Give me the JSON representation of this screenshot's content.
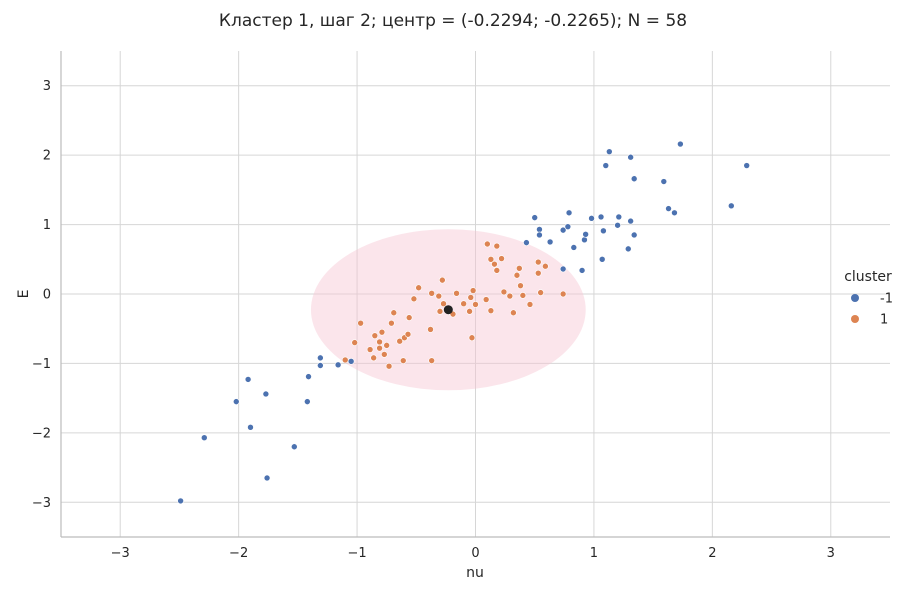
{
  "chart_data": {
    "type": "scatter",
    "title": "Кластер 1, шаг 2; центр = (-0.2294; -0.2265); N = 58",
    "xlabel": "nu",
    "ylabel": "E",
    "xlim": [
      -3.5,
      3.5
    ],
    "ylim": [
      -3.5,
      3.5
    ],
    "xticks": [
      -3,
      -2,
      -1,
      0,
      1,
      2,
      3
    ],
    "yticks": [
      -3,
      -2,
      -1,
      0,
      1,
      2,
      3
    ],
    "xtick_labels": [
      "−3",
      "−2",
      "−1",
      "0",
      "1",
      "2",
      "3"
    ],
    "ytick_labels": [
      "−3",
      "−2",
      "−1",
      "0",
      "1",
      "2",
      "3"
    ],
    "grid": true,
    "legend": {
      "title": "cluster",
      "placement": "right",
      "entries": [
        {
          "label": "-1",
          "color": "#4c72b0"
        },
        {
          "label": "1",
          "color": "#dd8452"
        }
      ]
    },
    "center": {
      "x": -0.2294,
      "y": -0.2265,
      "color": "#222222"
    },
    "circle": {
      "cx": -0.2294,
      "cy": -0.2265,
      "r": 1.16,
      "color": "#f7c5d2"
    },
    "series": [
      {
        "name": "-1",
        "color": "#4c72b0",
        "points": [
          [
            -2.49,
            -2.98
          ],
          [
            -2.29,
            -2.07
          ],
          [
            -2.02,
            -1.55
          ],
          [
            -1.92,
            -1.23
          ],
          [
            -1.9,
            -1.92
          ],
          [
            -1.77,
            -1.44
          ],
          [
            -1.76,
            -2.65
          ],
          [
            -1.53,
            -2.2
          ],
          [
            -1.42,
            -1.55
          ],
          [
            -1.41,
            -1.19
          ],
          [
            -1.31,
            -0.92
          ],
          [
            -1.31,
            -1.03
          ],
          [
            -1.16,
            -1.02
          ],
          [
            -1.05,
            -0.97
          ],
          [
            0.43,
            0.74
          ],
          [
            0.5,
            1.1
          ],
          [
            0.54,
            0.93
          ],
          [
            0.54,
            0.85
          ],
          [
            0.63,
            0.75
          ],
          [
            0.74,
            0.92
          ],
          [
            0.78,
            0.97
          ],
          [
            0.79,
            1.17
          ],
          [
            0.83,
            0.67
          ],
          [
            0.9,
            0.34
          ],
          [
            0.92,
            0.78
          ],
          [
            0.93,
            0.86
          ],
          [
            0.98,
            1.09
          ],
          [
            1.06,
            1.11
          ],
          [
            1.07,
            0.5
          ],
          [
            1.08,
            0.91
          ],
          [
            1.1,
            1.85
          ],
          [
            1.13,
            2.05
          ],
          [
            1.2,
            0.99
          ],
          [
            1.21,
            1.11
          ],
          [
            1.29,
            0.65
          ],
          [
            1.31,
            1.05
          ],
          [
            1.31,
            1.97
          ],
          [
            1.34,
            1.66
          ],
          [
            1.34,
            0.85
          ],
          [
            1.59,
            1.62
          ],
          [
            1.63,
            1.23
          ],
          [
            1.68,
            1.17
          ],
          [
            1.73,
            2.16
          ],
          [
            2.16,
            1.27
          ],
          [
            2.29,
            1.85
          ],
          [
            0.74,
            0.36
          ]
        ]
      },
      {
        "name": "1",
        "color": "#dd8452",
        "points": [
          [
            -1.1,
            -0.95
          ],
          [
            -1.02,
            -0.7
          ],
          [
            -0.97,
            -0.42
          ],
          [
            -0.89,
            -0.8
          ],
          [
            -0.86,
            -0.92
          ],
          [
            -0.85,
            -0.6
          ],
          [
            -0.81,
            -0.69
          ],
          [
            -0.81,
            -0.78
          ],
          [
            -0.79,
            -0.55
          ],
          [
            -0.77,
            -0.87
          ],
          [
            -0.75,
            -0.74
          ],
          [
            -0.73,
            -1.04
          ],
          [
            -0.71,
            -0.42
          ],
          [
            -0.69,
            -0.27
          ],
          [
            -0.64,
            -0.68
          ],
          [
            -0.61,
            -0.96
          ],
          [
            -0.6,
            -0.63
          ],
          [
            -0.57,
            -0.58
          ],
          [
            -0.56,
            -0.34
          ],
          [
            -0.52,
            -0.07
          ],
          [
            -0.48,
            0.09
          ],
          [
            -0.38,
            -0.51
          ],
          [
            -0.37,
            -0.96
          ],
          [
            -0.37,
            0.01
          ],
          [
            -0.31,
            -0.03
          ],
          [
            -0.3,
            -0.25
          ],
          [
            -0.28,
            0.2
          ],
          [
            -0.27,
            -0.14
          ],
          [
            -0.22,
            -0.25
          ],
          [
            -0.19,
            -0.29
          ],
          [
            -0.16,
            0.01
          ],
          [
            -0.1,
            -0.14
          ],
          [
            -0.05,
            -0.25
          ],
          [
            -0.04,
            -0.05
          ],
          [
            -0.03,
            -0.63
          ],
          [
            -0.02,
            0.05
          ],
          [
            0.0,
            -0.15
          ],
          [
            0.09,
            -0.08
          ],
          [
            0.1,
            0.72
          ],
          [
            0.13,
            -0.24
          ],
          [
            0.13,
            0.5
          ],
          [
            0.16,
            0.43
          ],
          [
            0.18,
            0.34
          ],
          [
            0.18,
            0.69
          ],
          [
            0.22,
            0.51
          ],
          [
            0.24,
            0.03
          ],
          [
            0.29,
            -0.03
          ],
          [
            0.32,
            -0.27
          ],
          [
            0.35,
            0.27
          ],
          [
            0.37,
            0.37
          ],
          [
            0.38,
            0.12
          ],
          [
            0.4,
            -0.02
          ],
          [
            0.46,
            -0.15
          ],
          [
            0.53,
            0.3
          ],
          [
            0.53,
            0.46
          ],
          [
            0.55,
            0.02
          ],
          [
            0.59,
            0.4
          ],
          [
            0.74,
            0.0
          ]
        ]
      }
    ]
  }
}
